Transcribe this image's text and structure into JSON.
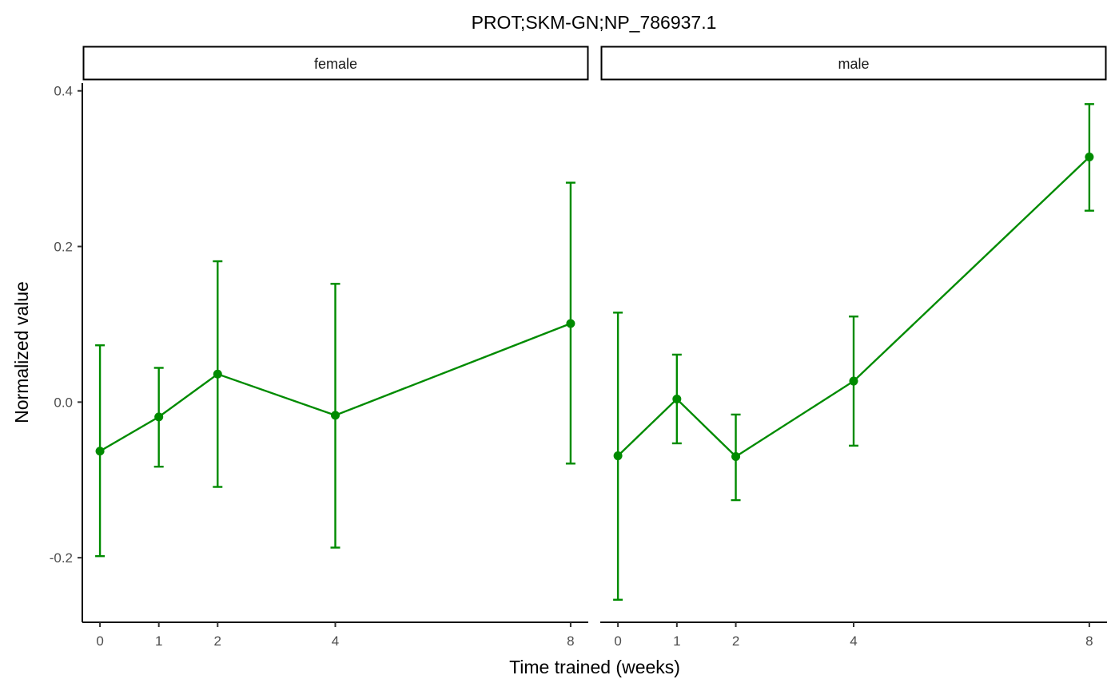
{
  "chart_data": {
    "type": "line",
    "facet": true,
    "title": "PROT;SKM-GN;NP_786937.1",
    "xlabel": "Time trained (weeks)",
    "ylabel": "Normalized value",
    "x_ticks": [
      0,
      1,
      2,
      4,
      8
    ],
    "y_ticks": [
      -0.2,
      0.0,
      0.2,
      0.4
    ],
    "y_tick_labels": [
      "-0.2",
      "0.0",
      "0.2",
      "0.4"
    ],
    "xlim": [
      -0.3,
      8.3
    ],
    "ylim": [
      -0.283,
      0.41
    ],
    "grid": false,
    "legend": "none",
    "color": "#008B00",
    "panels": [
      {
        "strip_label": "female",
        "x": [
          0,
          1,
          2,
          4,
          8
        ],
        "y": [
          -0.063,
          -0.019,
          0.036,
          -0.017,
          0.101
        ],
        "error_low": [
          -0.198,
          -0.083,
          -0.109,
          -0.187,
          -0.079
        ],
        "error_high": [
          0.073,
          0.044,
          0.181,
          0.152,
          0.282
        ]
      },
      {
        "strip_label": "male",
        "x": [
          0,
          1,
          2,
          4,
          8
        ],
        "y": [
          -0.069,
          0.004,
          -0.07,
          0.027,
          0.315
        ],
        "error_low": [
          -0.254,
          -0.053,
          -0.126,
          -0.056,
          0.246
        ],
        "error_high": [
          0.115,
          0.061,
          -0.016,
          0.11,
          0.383
        ]
      }
    ]
  }
}
